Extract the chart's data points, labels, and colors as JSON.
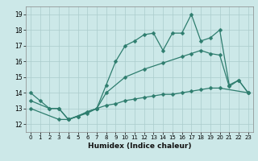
{
  "line1_x": [
    0,
    1,
    2,
    3,
    4,
    7,
    8,
    9,
    10,
    11,
    12,
    13,
    14,
    15,
    16,
    17,
    18,
    19,
    20,
    21,
    22,
    23
  ],
  "line1_y": [
    14.0,
    13.5,
    13.0,
    13.0,
    12.3,
    13.0,
    14.5,
    16.0,
    17.0,
    17.3,
    17.7,
    17.8,
    16.7,
    17.8,
    17.8,
    19.0,
    17.3,
    17.5,
    18.0,
    14.5,
    14.8,
    14.0
  ],
  "line2_x": [
    0,
    2,
    3,
    4,
    5,
    6,
    7,
    8,
    10,
    12,
    14,
    16,
    17,
    18,
    19,
    20,
    21,
    22,
    23
  ],
  "line2_y": [
    13.5,
    13.0,
    13.0,
    12.3,
    12.5,
    12.7,
    13.0,
    14.0,
    15.0,
    15.5,
    15.9,
    16.3,
    16.5,
    16.7,
    16.5,
    16.4,
    14.4,
    14.8,
    14.0
  ],
  "line3_x": [
    0,
    3,
    4,
    5,
    6,
    7,
    8,
    9,
    10,
    11,
    12,
    13,
    14,
    15,
    16,
    17,
    18,
    19,
    20,
    23
  ],
  "line3_y": [
    13.0,
    12.3,
    12.3,
    12.5,
    12.8,
    13.0,
    13.2,
    13.3,
    13.5,
    13.6,
    13.7,
    13.8,
    13.9,
    13.9,
    14.0,
    14.1,
    14.2,
    14.3,
    14.3,
    14.0
  ],
  "color": "#2e7d6e",
  "bg_color": "#cce8e8",
  "grid_color": "#aacccc",
  "xlabel": "Humidex (Indice chaleur)",
  "ylim": [
    11.5,
    19.5
  ],
  "xlim": [
    -0.5,
    23.5
  ],
  "yticks": [
    12,
    13,
    14,
    15,
    16,
    17,
    18,
    19
  ],
  "xticks": [
    0,
    1,
    2,
    3,
    4,
    5,
    6,
    7,
    8,
    9,
    10,
    11,
    12,
    13,
    14,
    15,
    16,
    17,
    18,
    19,
    20,
    21,
    22,
    23
  ]
}
